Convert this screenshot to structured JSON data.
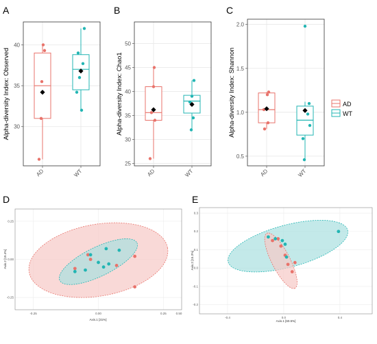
{
  "colors": {
    "AD": "#e8736b",
    "WT": "#22b5b3",
    "AD_fill": "#f7c9c6",
    "WT_fill": "#a9dfe0",
    "grid": "#e6e6e6",
    "mean": "#000000",
    "panel_border": "#333333",
    "tick": "#666666"
  },
  "legend": {
    "placement": "right",
    "entries": [
      {
        "label": "AD",
        "group": "AD"
      },
      {
        "label": "WT",
        "group": "WT"
      }
    ]
  },
  "chart_data": [
    {
      "panel": "A",
      "type": "box",
      "title": "",
      "ylabel": "Alpha-diversity Index: Observed",
      "categories": [
        "AD",
        "WT"
      ],
      "ylim": [
        25.2,
        42.8
      ],
      "yticks": [
        30,
        35,
        40
      ],
      "series": [
        {
          "group": "AD",
          "q1": 31.0,
          "median": 35.0,
          "q3": 39.0,
          "whisker_low": 26.0,
          "whisker_high": 40.0,
          "mean": 34.2,
          "points": [
            40.0,
            39.3,
            35.5,
            31.0,
            26.0
          ]
        },
        {
          "group": "WT",
          "q1": 34.5,
          "median": 37.0,
          "q3": 38.8,
          "whisker_low": 32.0,
          "whisker_high": 42.0,
          "mean": 36.8,
          "points": [
            42.0,
            39.0,
            37.7,
            36.0,
            34.2,
            32.0
          ]
        }
      ]
    },
    {
      "panel": "B",
      "type": "box",
      "title": "",
      "ylabel": "Alpha-diversity Index: Chao1",
      "categories": [
        "AD",
        "WT"
      ],
      "ylim": [
        24.5,
        54.5
      ],
      "yticks": [
        25,
        30,
        35,
        40,
        45,
        50
      ],
      "series": [
        {
          "group": "AD",
          "q1": 34.0,
          "median": 35.6,
          "q3": 41.0,
          "whisker_low": 26.0,
          "whisker_high": 45.0,
          "mean": 36.2,
          "points": [
            45.0,
            41.0,
            35.6,
            34.0,
            26.0
          ]
        },
        {
          "group": "WT",
          "q1": 35.5,
          "median": 38.0,
          "q3": 39.2,
          "whisker_low": 32.0,
          "whisker_high": 42.3,
          "mean": 37.3,
          "points": [
            42.3,
            39.0,
            37.8,
            34.5,
            32.0
          ]
        }
      ]
    },
    {
      "panel": "C",
      "type": "box",
      "title": "",
      "ylabel": "Alpha-diversity Index: Shannon",
      "categories": [
        "AD",
        "WT"
      ],
      "ylim": [
        0.39,
        2.06
      ],
      "yticks": [
        0.5,
        1.0,
        1.5,
        2.0
      ],
      "ytick_labels": [
        "0.5",
        "1.0",
        "1.5",
        "2.0"
      ],
      "series": [
        {
          "group": "AD",
          "q1": 0.88,
          "median": 1.03,
          "q3": 1.22,
          "whisker_low": 0.81,
          "whisker_high": 1.23,
          "mean": 1.04,
          "points": [
            1.23,
            1.2,
            1.03,
            0.88,
            0.81
          ]
        },
        {
          "group": "WT",
          "q1": 0.74,
          "median": 0.91,
          "q3": 1.07,
          "whisker_low": 0.46,
          "whisker_high": 1.12,
          "mean": 1.02,
          "points": [
            1.98,
            1.1,
            0.98,
            0.85,
            0.7,
            0.46
          ]
        }
      ]
    },
    {
      "panel": "D",
      "type": "scatter",
      "title": "",
      "xlabel": "Axis.1  [31%]",
      "ylabel": "Axis.2  [19.4%]",
      "xlim": [
        -0.32,
        0.32
      ],
      "ylim": [
        -0.33,
        0.33
      ],
      "xticks": [
        -0.25,
        0.0,
        0.25,
        0.5
      ],
      "xtick_labels": [
        "-0.25",
        "0.00",
        "0.25",
        "0.50"
      ],
      "yticks": [
        0.25,
        0.0,
        -0.25
      ],
      "ytick_labels": [
        "0.25",
        "0.00",
        "-0.25"
      ],
      "points": [
        {
          "group": "AD",
          "x": -0.04,
          "y": 0.03
        },
        {
          "group": "AD",
          "x": -0.03,
          "y": 0.0
        },
        {
          "group": "AD",
          "x": -0.09,
          "y": -0.06
        },
        {
          "group": "AD",
          "x": 0.07,
          "y": -0.04
        },
        {
          "group": "AD",
          "x": 0.14,
          "y": 0.02
        },
        {
          "group": "AD",
          "x": 0.14,
          "y": -0.18
        },
        {
          "group": "WT",
          "x": 0.03,
          "y": 0.07
        },
        {
          "group": "WT",
          "x": 0.08,
          "y": 0.06
        },
        {
          "group": "WT",
          "x": -0.03,
          "y": 0.03
        },
        {
          "group": "WT",
          "x": 0.0,
          "y": -0.02
        },
        {
          "group": "WT",
          "x": 0.04,
          "y": -0.03
        },
        {
          "group": "WT",
          "x": -0.09,
          "y": -0.08
        },
        {
          "group": "WT",
          "x": -0.05,
          "y": -0.07
        },
        {
          "group": "WT",
          "x": 0.02,
          "y": -0.05
        }
      ],
      "ellipses": [
        {
          "group": "AD",
          "cx": 0.0,
          "cy": -0.005,
          "rx": 0.27,
          "ry": 0.235,
          "angle": -10
        },
        {
          "group": "WT",
          "cx": 0.0,
          "cy": -0.015,
          "rx": 0.165,
          "ry": 0.095,
          "angle": -26
        }
      ]
    },
    {
      "panel": "E",
      "type": "scatter",
      "title": "",
      "xlabel": "Axis.1  [60.5%]",
      "ylabel": "Axis.2  [15.3%]",
      "xlim": [
        -0.6,
        0.63
      ],
      "ylim": [
        -0.25,
        0.33
      ],
      "xticks": [
        -0.4,
        0.0,
        0.4
      ],
      "xtick_labels": [
        "-0.4",
        "0.0",
        "0.4"
      ],
      "yticks": [
        0.3,
        0.2,
        0.1,
        0.0,
        -0.1,
        -0.2
      ],
      "ytick_labels": [
        "0.3",
        "0.2",
        "0.1",
        "0.0",
        "-0.1",
        "-0.2"
      ],
      "points": [
        {
          "group": "AD",
          "x": -0.08,
          "y": 0.15
        },
        {
          "group": "AD",
          "x": -0.04,
          "y": 0.16
        },
        {
          "group": "AD",
          "x": -0.02,
          "y": 0.12
        },
        {
          "group": "AD",
          "x": 0.01,
          "y": 0.07
        },
        {
          "group": "AD",
          "x": 0.03,
          "y": 0.02
        },
        {
          "group": "AD",
          "x": 0.08,
          "y": 0.03
        },
        {
          "group": "AD",
          "x": 0.06,
          "y": -0.02
        },
        {
          "group": "WT",
          "x": -0.11,
          "y": 0.17
        },
        {
          "group": "WT",
          "x": -0.06,
          "y": 0.16
        },
        {
          "group": "WT",
          "x": -0.01,
          "y": 0.15
        },
        {
          "group": "WT",
          "x": 0.01,
          "y": 0.13
        },
        {
          "group": "WT",
          "x": 0.02,
          "y": 0.06
        },
        {
          "group": "WT",
          "x": 0.39,
          "y": 0.2
        }
      ],
      "ellipses": [
        {
          "group": "WT",
          "cx": 0.03,
          "cy": 0.12,
          "rx": 0.44,
          "ry": 0.115,
          "angle": -15
        },
        {
          "group": "AD",
          "cx": -0.02,
          "cy": 0.04,
          "rx": 0.22,
          "ry": 0.05,
          "angle": 63
        }
      ]
    }
  ]
}
